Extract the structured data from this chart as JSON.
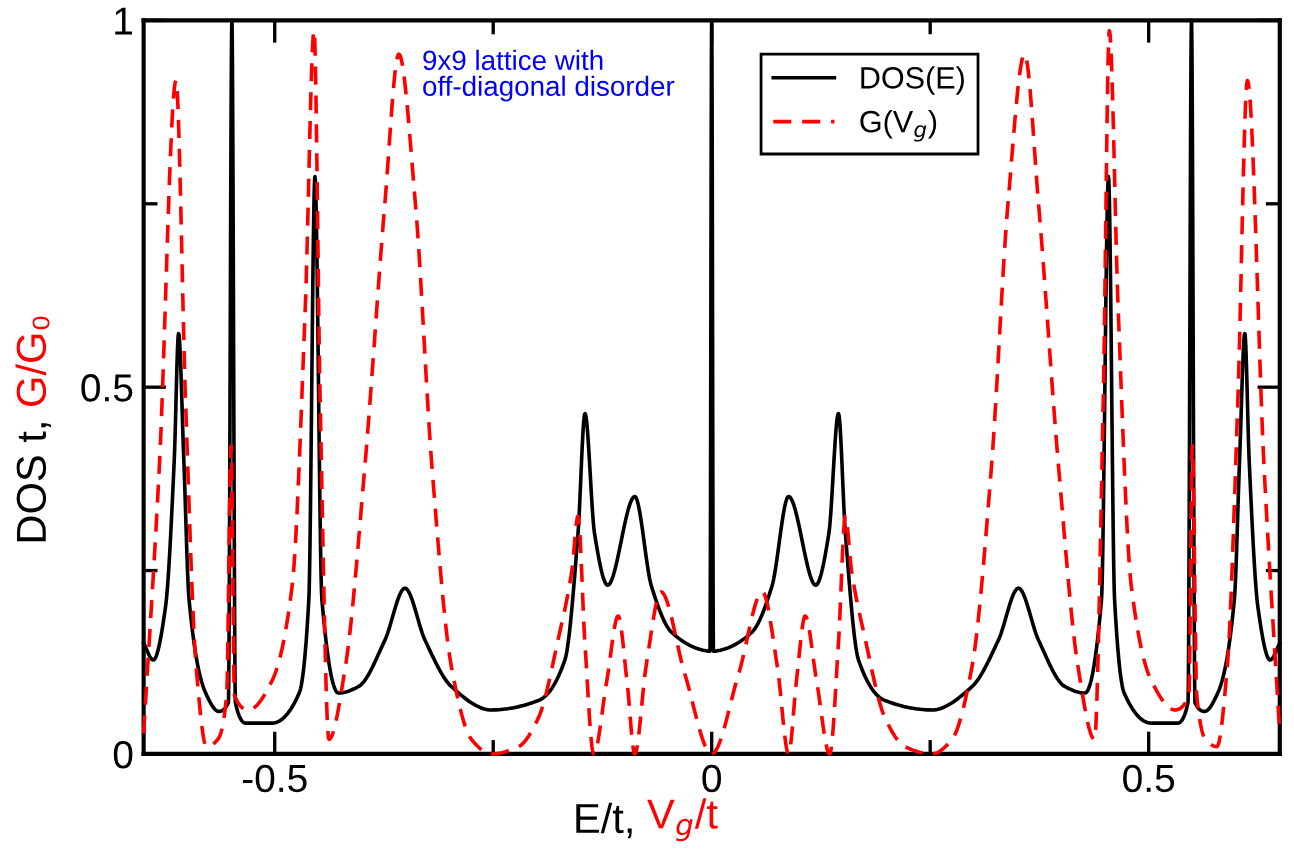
{
  "chart_data": {
    "type": "line",
    "xlabel": "E/t, V$_{g}$/t",
    "ylabel": "DOS t, G/G₀",
    "annotations": [
      "9x9 lattice with\noff-diagonal disorder"
    ],
    "xlim": [
      -0.65,
      0.65
    ],
    "xticks": [
      -0.5,
      {
        "value": -0.25,
        "label": null
      },
      0,
      {
        "value": 0.25,
        "label": null
      },
      0.5
    ],
    "ylim": [
      0,
      1
    ],
    "yticks": [
      0,
      {
        "value": 0.25,
        "label": null
      },
      0.5,
      {
        "value": 0.75,
        "label": null
      },
      1
    ],
    "grid": false,
    "legend": "top",
    "marker": "none",
    "series": [
      {
        "name": "DOS(E)",
        "color": "#000000",
        "line_style": "solid",
        "x": [
          -0.65,
          -0.639,
          -0.625,
          -0.615,
          -0.61,
          -0.604,
          -0.598,
          -0.579,
          -0.564,
          -0.553,
          -0.549,
          -0.545,
          -0.533,
          -0.503,
          -0.472,
          -0.461,
          -0.454,
          -0.446,
          -0.427,
          -0.404,
          -0.374,
          -0.351,
          -0.328,
          -0.298,
          -0.252,
          -0.198,
          -0.168,
          -0.153,
          -0.145,
          -0.134,
          -0.119,
          -0.088,
          -0.069,
          -0.046,
          -0.008,
          -0.002,
          0,
          0.002,
          0.008,
          0.046,
          0.069,
          0.088,
          0.119,
          0.134,
          0.145,
          0.153,
          0.168,
          0.198,
          0.252,
          0.298,
          0.328,
          0.351,
          0.374,
          0.404,
          0.427,
          0.446,
          0.454,
          0.461,
          0.472,
          0.503,
          0.533,
          0.545,
          0.549,
          0.553,
          0.564,
          0.579,
          0.598,
          0.604,
          0.61,
          0.615,
          0.625,
          0.639,
          0.65
        ],
        "values": [
          0.151,
          0.128,
          0.2,
          0.4,
          0.573,
          0.4,
          0.21,
          0.083,
          0.058,
          0.07,
          1.0,
          0.07,
          0.042,
          0.042,
          0.083,
          0.21,
          0.787,
          0.21,
          0.083,
          0.092,
          0.155,
          0.226,
          0.155,
          0.092,
          0.06,
          0.073,
          0.128,
          0.3,
          0.464,
          0.3,
          0.23,
          0.351,
          0.229,
          0.166,
          0.141,
          0.14,
          1.0,
          0.14,
          0.141,
          0.166,
          0.229,
          0.351,
          0.23,
          0.3,
          0.464,
          0.3,
          0.128,
          0.073,
          0.06,
          0.092,
          0.155,
          0.226,
          0.155,
          0.092,
          0.083,
          0.21,
          0.787,
          0.21,
          0.083,
          0.042,
          0.042,
          0.07,
          1.0,
          0.07,
          0.058,
          0.083,
          0.21,
          0.4,
          0.573,
          0.4,
          0.2,
          0.128,
          0.151
        ]
      },
      {
        "name": "G(V$_{g}$)",
        "color": "#ff0000",
        "line_style": "dashed",
        "x": [
          -0.65,
          -0.632,
          -0.613,
          -0.602,
          -0.59,
          -0.578,
          -0.565,
          -0.555,
          -0.55,
          -0.546,
          -0.53,
          -0.503,
          -0.48,
          -0.465,
          -0.455,
          -0.448,
          -0.438,
          -0.419,
          -0.397,
          -0.374,
          -0.358,
          -0.339,
          -0.32,
          -0.298,
          -0.275,
          -0.252,
          -0.221,
          -0.198,
          -0.175,
          -0.16,
          -0.153,
          -0.145,
          -0.135,
          -0.12,
          -0.107,
          -0.097,
          -0.088,
          -0.075,
          -0.058,
          -0.031,
          0,
          0.031,
          0.058,
          0.075,
          0.088,
          0.097,
          0.107,
          0.12,
          0.135,
          0.145,
          0.153,
          0.16,
          0.175,
          0.198,
          0.221,
          0.252,
          0.275,
          0.298,
          0.32,
          0.339,
          0.358,
          0.374,
          0.397,
          0.419,
          0.438,
          0.448,
          0.455,
          0.465,
          0.48,
          0.503,
          0.53,
          0.546,
          0.55,
          0.555,
          0.565,
          0.578,
          0.59,
          0.602,
          0.613,
          0.632,
          0.65
        ],
        "values": [
          0.028,
          0.392,
          0.918,
          0.48,
          0.12,
          0.01,
          0.02,
          0.08,
          0.42,
          0.08,
          0.06,
          0.1,
          0.23,
          0.61,
          0.986,
          0.48,
          0.02,
          0.12,
          0.39,
          0.75,
          0.954,
          0.75,
          0.39,
          0.12,
          0.02,
          0.0,
          0.01,
          0.05,
          0.16,
          0.25,
          0.324,
          0.15,
          0.0,
          0.1,
          0.188,
          0.1,
          0.0,
          0.12,
          0.221,
          0.11,
          0.0,
          0.11,
          0.221,
          0.12,
          0.0,
          0.1,
          0.188,
          0.1,
          0.0,
          0.15,
          0.324,
          0.25,
          0.16,
          0.05,
          0.01,
          0.0,
          0.02,
          0.12,
          0.39,
          0.75,
          0.954,
          0.75,
          0.39,
          0.12,
          0.02,
          0.48,
          0.986,
          0.61,
          0.23,
          0.1,
          0.06,
          0.08,
          0.42,
          0.08,
          0.02,
          0.01,
          0.12,
          0.48,
          0.918,
          0.392,
          0.028
        ]
      }
    ]
  }
}
